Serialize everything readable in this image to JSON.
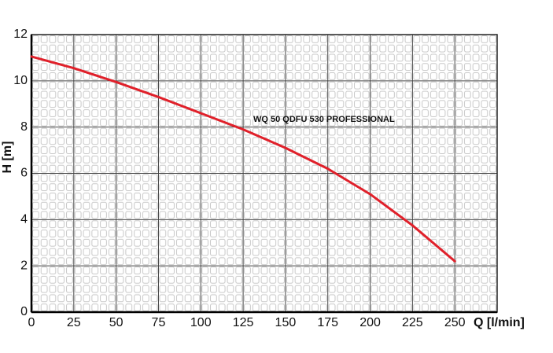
{
  "chart_data": {
    "type": "line",
    "x_label": "Q [l/min]",
    "y_label": "H [m]",
    "annotation": "WQ 50 QDFU 530 PROFESSIONAL",
    "x": [
      0,
      25,
      50,
      75,
      100,
      125,
      150,
      175,
      200,
      225,
      250
    ],
    "series": [
      {
        "name": "WQ 50 QDFU 530 PROFESSIONAL",
        "color": "#e0202a",
        "values": [
          11.05,
          10.55,
          9.95,
          9.3,
          8.6,
          7.9,
          7.1,
          6.2,
          5.1,
          3.75,
          2.2
        ]
      }
    ],
    "xlim": [
      0,
      275
    ],
    "xticks": [
      0,
      25,
      50,
      75,
      100,
      125,
      150,
      175,
      200,
      225,
      250
    ],
    "ylim": [
      0,
      12
    ],
    "yticks": [
      0,
      2,
      4,
      6,
      8,
      10,
      12
    ],
    "grid": true
  }
}
